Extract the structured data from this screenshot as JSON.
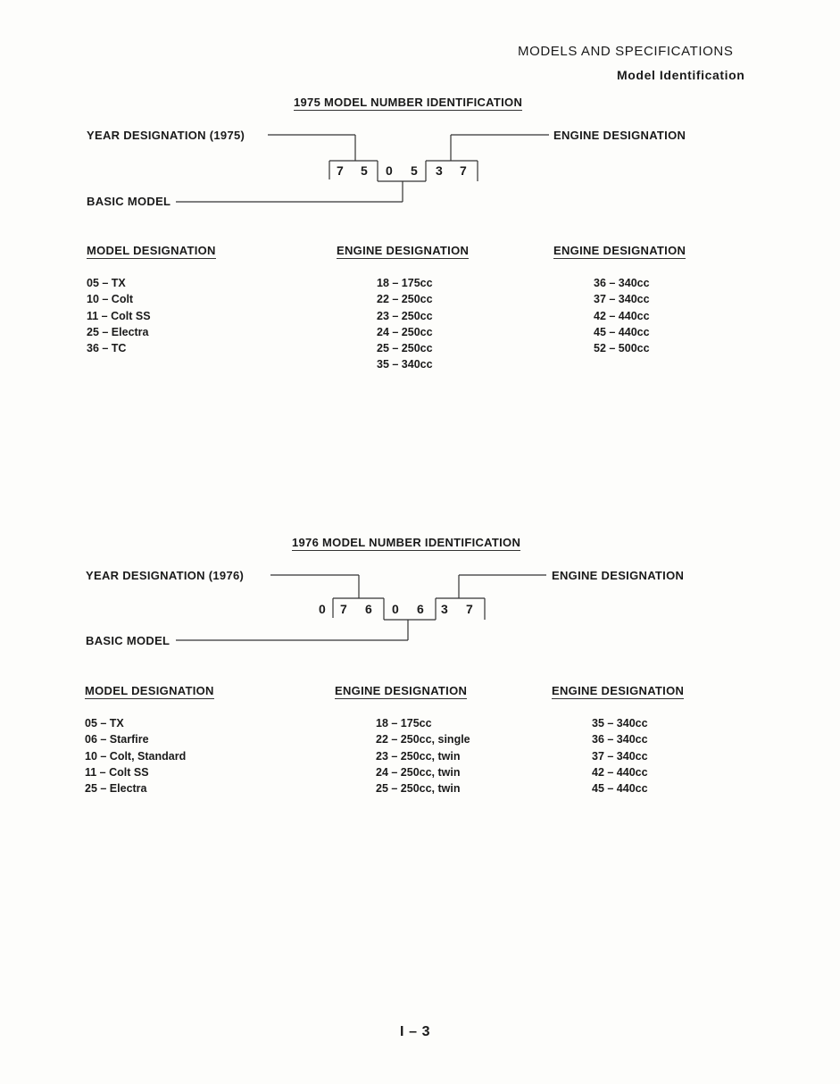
{
  "header": {
    "section": "MODELS AND SPECIFICATIONS",
    "subsection": "Model Identification"
  },
  "id1975": {
    "title": "1975 MODEL NUMBER IDENTIFICATION",
    "year_label": "YEAR DESIGNATION  (1975)",
    "engine_label": "ENGINE DESIGNATION",
    "basic_label": "BASIC MODEL",
    "digits": [
      "7",
      "5",
      "0",
      "5",
      "3",
      "7"
    ],
    "headers": [
      "MODEL DESIGNATION",
      "ENGINE DESIGNATION",
      "ENGINE DESIGNATION"
    ],
    "models": [
      "05 – TX",
      "10 – Colt",
      "11 – Colt SS",
      "25 – Electra",
      "36 – TC"
    ],
    "engines_a": [
      "18 – 175cc",
      "22 – 250cc",
      "23 – 250cc",
      "24 – 250cc",
      "25 – 250cc",
      "35 – 340cc"
    ],
    "engines_b": [
      "36 – 340cc",
      "37 – 340cc",
      "42 – 440cc",
      "45 – 440cc",
      "52 – 500cc"
    ]
  },
  "id1976": {
    "title": "1976 MODEL NUMBER IDENTIFICATION",
    "year_label": "YEAR DESIGNATION  (1976)",
    "engine_label": "ENGINE DESIGNATION",
    "basic_label": "BASIC MODEL",
    "digits": [
      "0",
      "7",
      "6",
      "0",
      "6",
      "3",
      "7"
    ],
    "headers": [
      "MODEL DESIGNATION",
      "ENGINE DESIGNATION",
      "ENGINE DESIGNATION"
    ],
    "models": [
      "05 – TX",
      "06 – Starfire",
      "10 – Colt, Standard",
      "11 – Colt SS",
      "25 – Electra"
    ],
    "engines_a": [
      "18 – 175cc",
      "22 – 250cc, single",
      "23 – 250cc, twin",
      "24 – 250cc, twin",
      "25 – 250cc, twin"
    ],
    "engines_b": [
      "35 – 340cc",
      "36 – 340cc",
      "37 – 340cc",
      "42 – 440cc",
      "45 – 440cc"
    ]
  },
  "footer": {
    "page_number": "I – 3"
  }
}
